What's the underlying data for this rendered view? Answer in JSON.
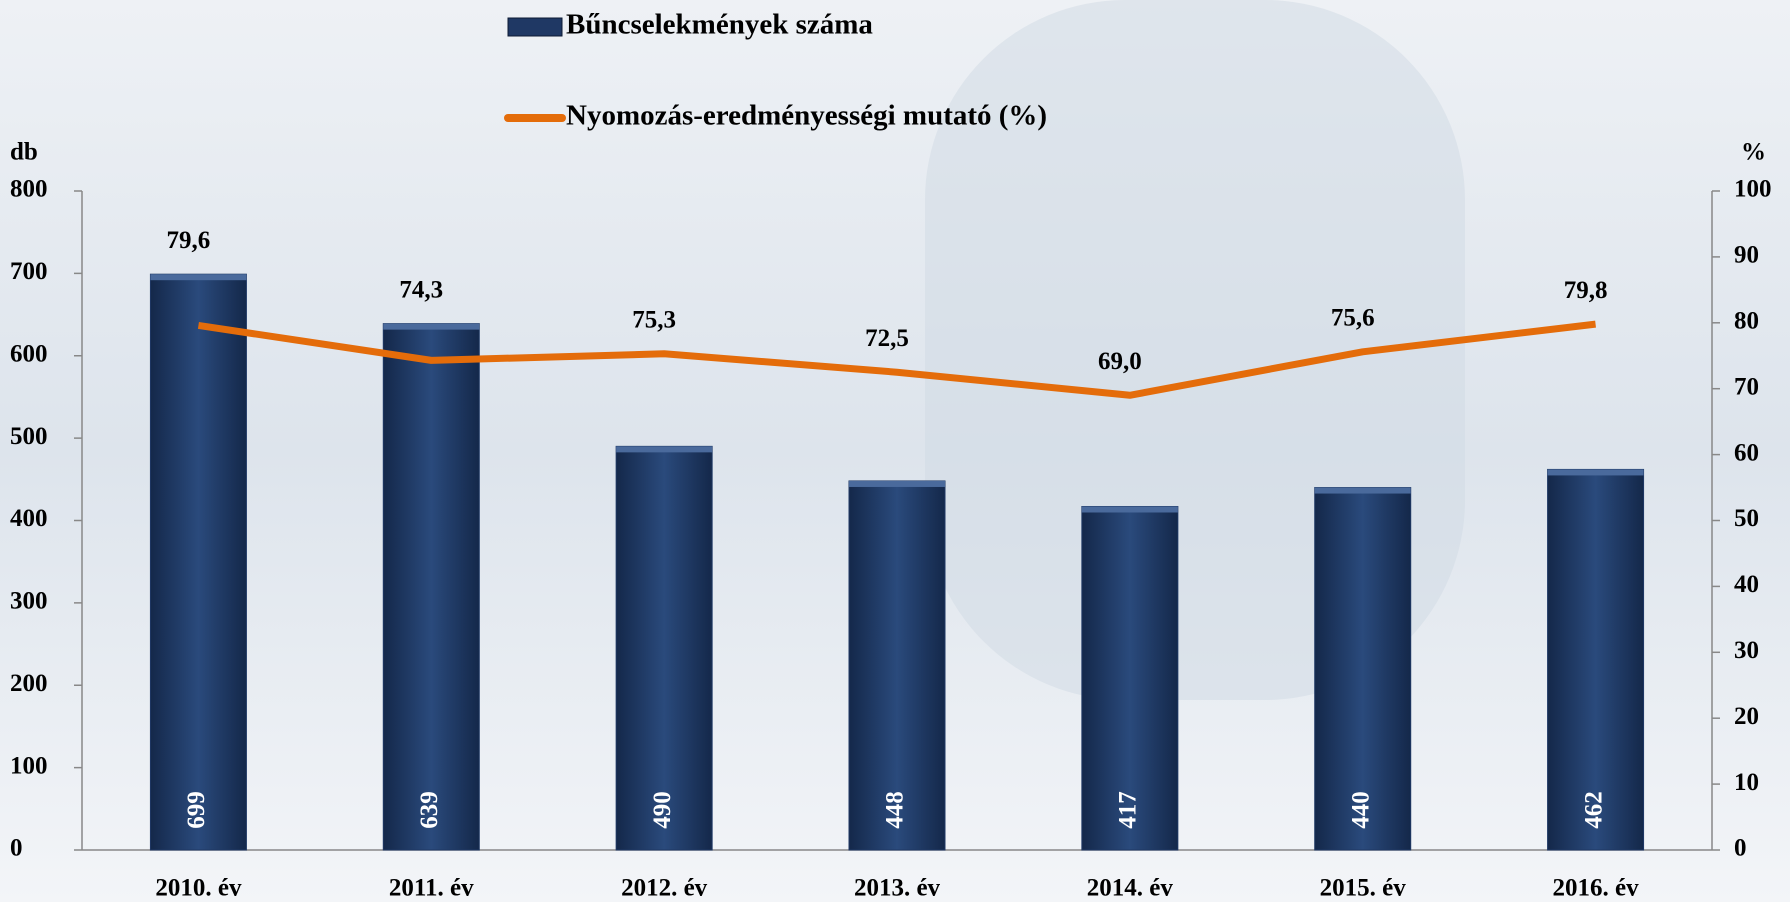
{
  "chart_data": {
    "type": "bar",
    "y_label": "db",
    "y2_label": "%",
    "categories": [
      "2010. év",
      "2011. év",
      "2012. év",
      "2013. év",
      "2014. év",
      "2015. év",
      "2016. év"
    ],
    "series": [
      {
        "name": "Bűncselekmények száma",
        "type": "bar",
        "color": "#1f3864",
        "values": [
          699,
          639,
          490,
          448,
          417,
          440,
          462
        ]
      },
      {
        "name": "Nyomozás-eredményességi mutató (%)",
        "type": "line",
        "axis": "y2",
        "color": "#e46c0a",
        "values": [
          79.6,
          74.3,
          75.3,
          72.5,
          69.0,
          75.6,
          79.8
        ],
        "value_labels": [
          "79,6",
          "74,3",
          "75,3",
          "72,5",
          "69,0",
          "75,6",
          "79,8"
        ]
      }
    ],
    "ylim": [
      0,
      800
    ],
    "yticks": [
      0,
      100,
      200,
      300,
      400,
      500,
      600,
      700,
      800
    ],
    "y2lim": [
      0,
      100
    ],
    "y2ticks": [
      0,
      10,
      20,
      30,
      40,
      50,
      60,
      70,
      80,
      90,
      100
    ],
    "grid": false
  }
}
